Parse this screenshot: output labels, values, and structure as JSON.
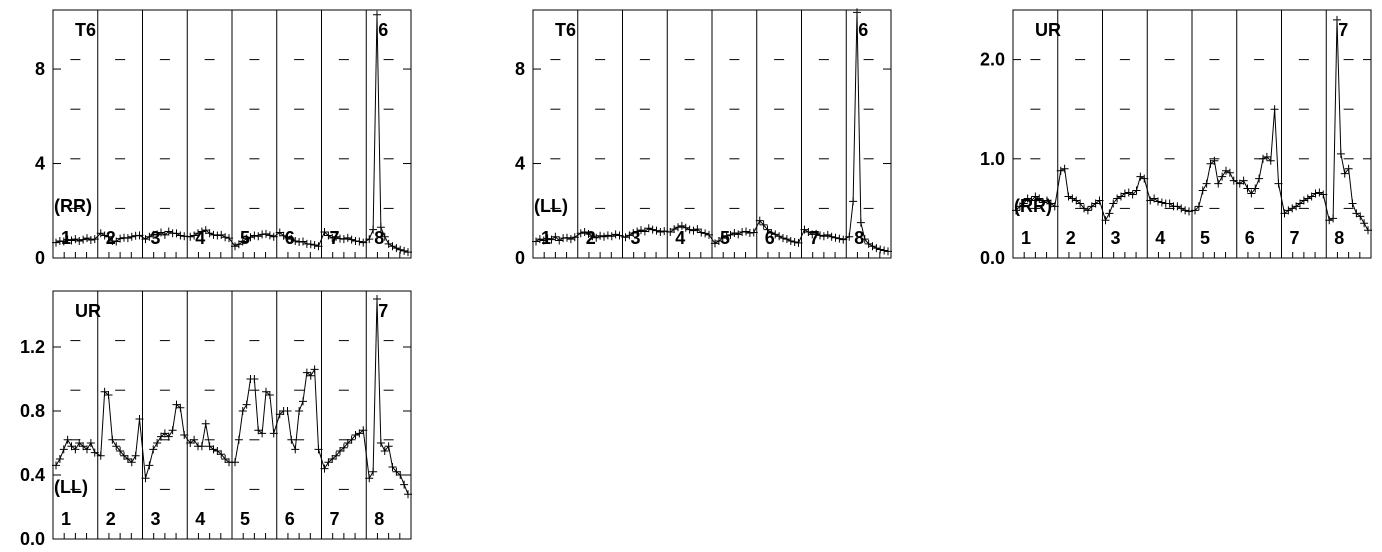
{
  "chart_data": [
    {
      "type": "line",
      "corner_label": "T6",
      "pol_label": "(RR)",
      "top_label": "6",
      "ylim": [
        0,
        10.5
      ],
      "yticks": [
        "0",
        "4",
        "8"
      ],
      "ytick_values": [
        0,
        4,
        8
      ],
      "panel_labels": [
        "1",
        "2",
        "3",
        "4",
        "5",
        "6",
        "7",
        "8"
      ],
      "segments": [
        [
          0.65,
          0.72,
          0.7,
          0.78,
          0.74,
          0.8,
          0.72,
          0.78,
          0.84,
          0.76,
          0.8
        ],
        [
          1.05,
          0.95,
          0.9,
          0.72,
          0.7,
          0.82,
          0.86,
          0.84,
          0.9,
          0.94,
          0.96
        ],
        [
          0.8,
          0.9,
          0.98,
          1.0,
          1.08,
          0.98,
          1.12,
          1.05,
          1.04,
          0.95,
          0.92
        ],
        [
          0.9,
          0.95,
          1.05,
          1.12,
          1.18,
          1.05,
          0.98,
          0.95,
          0.98,
          0.88,
          0.84
        ],
        [
          0.5,
          0.58,
          0.7,
          0.82,
          0.88,
          0.95,
          0.92,
          1.0,
          1.02,
          0.96,
          0.9
        ],
        [
          1.08,
          0.94,
          0.85,
          0.8,
          0.72,
          0.68,
          0.7,
          0.6,
          0.58,
          0.55,
          0.5
        ],
        [
          1.1,
          0.95,
          0.85,
          0.9,
          0.82,
          0.8,
          0.85,
          0.78,
          0.72,
          0.7,
          0.65
        ],
        [
          0.8,
          1.2,
          10.3,
          1.3,
          0.9,
          0.6,
          0.5,
          0.42,
          0.35,
          0.3,
          0.25
        ]
      ]
    },
    {
      "type": "line",
      "corner_label": "T6",
      "pol_label": "(LL)",
      "top_label": "6",
      "ylim": [
        0,
        10.5
      ],
      "yticks": [
        "0",
        "4",
        "8"
      ],
      "ytick_values": [
        0,
        4,
        8
      ],
      "panel_labels": [
        "1",
        "2",
        "3",
        "4",
        "5",
        "6",
        "7",
        "8"
      ],
      "segments": [
        [
          0.7,
          0.8,
          0.74,
          0.82,
          0.78,
          0.9,
          0.74,
          0.84,
          0.86,
          0.8,
          0.88
        ],
        [
          1.05,
          1.1,
          1.02,
          0.92,
          0.86,
          0.94,
          0.9,
          0.96,
          0.92,
          1.0,
          0.95
        ],
        [
          0.88,
          0.96,
          1.06,
          1.12,
          1.18,
          1.12,
          1.26,
          1.2,
          1.16,
          1.1,
          1.14
        ],
        [
          1.1,
          1.22,
          1.3,
          1.36,
          1.28,
          1.2,
          1.16,
          1.22,
          1.08,
          1.04,
          0.98
        ],
        [
          0.62,
          0.72,
          0.84,
          0.94,
          0.98,
          1.06,
          1.0,
          1.1,
          1.12,
          1.06,
          1.08
        ],
        [
          1.58,
          1.4,
          1.2,
          1.06,
          1.0,
          0.92,
          0.84,
          0.8,
          0.72,
          0.68,
          0.64
        ],
        [
          1.2,
          1.1,
          1.0,
          1.02,
          0.96,
          0.92,
          0.98,
          0.9,
          0.86,
          0.82,
          0.78
        ],
        [
          0.9,
          2.4,
          10.4,
          1.5,
          0.8,
          0.6,
          0.5,
          0.42,
          0.36,
          0.32,
          0.28
        ]
      ]
    },
    {
      "type": "line",
      "corner_label": "UR",
      "pol_label": "(RR)",
      "top_label": "7",
      "ylim": [
        0,
        2.5
      ],
      "yticks": [
        "0.0",
        "1.0",
        "2.0"
      ],
      "ytick_values": [
        0,
        1,
        2
      ],
      "panel_labels": [
        "1",
        "2",
        "3",
        "4",
        "5",
        "6",
        "7",
        "8"
      ],
      "segments": [
        [
          0.48,
          0.52,
          0.55,
          0.6,
          0.58,
          0.62,
          0.6,
          0.56,
          0.58,
          0.55,
          0.52
        ],
        [
          0.88,
          0.9,
          0.62,
          0.6,
          0.58,
          0.55,
          0.5,
          0.48,
          0.52,
          0.55,
          0.58
        ],
        [
          0.38,
          0.45,
          0.55,
          0.6,
          0.62,
          0.65,
          0.66,
          0.64,
          0.68,
          0.82,
          0.8
        ],
        [
          0.58,
          0.6,
          0.57,
          0.56,
          0.55,
          0.55,
          0.52,
          0.52,
          0.5,
          0.48,
          0.47
        ],
        [
          0.48,
          0.52,
          0.68,
          0.75,
          0.95,
          0.98,
          0.75,
          0.82,
          0.88,
          0.86,
          0.78
        ],
        [
          0.75,
          0.78,
          0.7,
          0.65,
          0.7,
          0.8,
          1.0,
          1.02,
          0.98,
          1.5,
          0.75
        ],
        [
          0.45,
          0.48,
          0.5,
          0.52,
          0.55,
          0.58,
          0.6,
          0.62,
          0.65,
          0.66,
          0.64
        ],
        [
          0.38,
          0.4,
          2.4,
          1.05,
          0.85,
          0.9,
          0.55,
          0.45,
          0.42,
          0.35,
          0.28
        ]
      ]
    },
    {
      "type": "line",
      "corner_label": "UR",
      "pol_label": "(LL)",
      "top_label": "7",
      "ylim": [
        0,
        1.55
      ],
      "yticks": [
        "0.0",
        "0.4",
        "0.8",
        "1.2"
      ],
      "ytick_values": [
        0,
        0.4,
        0.8,
        1.2
      ],
      "panel_labels": [
        "1",
        "2",
        "3",
        "4",
        "5",
        "6",
        "7",
        "8"
      ],
      "segments": [
        [
          0.46,
          0.5,
          0.56,
          0.62,
          0.58,
          0.56,
          0.6,
          0.58,
          0.56,
          0.6,
          0.54
        ],
        [
          0.52,
          0.92,
          0.9,
          0.62,
          0.58,
          0.55,
          0.52,
          0.5,
          0.48,
          0.52,
          0.75
        ],
        [
          0.38,
          0.46,
          0.56,
          0.6,
          0.64,
          0.66,
          0.64,
          0.68,
          0.84,
          0.82,
          0.65
        ],
        [
          0.6,
          0.62,
          0.58,
          0.58,
          0.72,
          0.58,
          0.56,
          0.55,
          0.53,
          0.5,
          0.48
        ],
        [
          0.48,
          0.62,
          0.8,
          0.84,
          1.0,
          1.0,
          0.68,
          0.66,
          0.92,
          0.9,
          0.66
        ],
        [
          0.78,
          0.8,
          0.8,
          0.62,
          0.56,
          0.8,
          0.86,
          1.04,
          1.02,
          1.06,
          0.56
        ],
        [
          0.44,
          0.48,
          0.5,
          0.52,
          0.55,
          0.57,
          0.6,
          0.62,
          0.65,
          0.66,
          0.68
        ],
        [
          0.38,
          0.42,
          1.5,
          0.6,
          0.55,
          0.58,
          0.45,
          0.42,
          0.4,
          0.34,
          0.28
        ]
      ]
    }
  ]
}
